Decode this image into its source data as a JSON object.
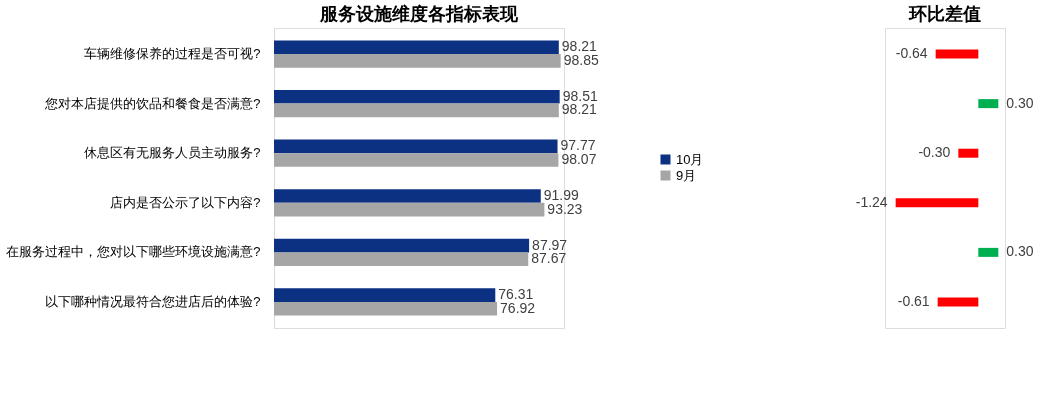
{
  "chart_data": [
    {
      "type": "bar",
      "orientation": "horizontal",
      "title": "服务设施维度各指标表现",
      "categories": [
        "车辆维修保养的过程是否可视?",
        "您对本店提供的饮品和餐食是否满意?",
        "休息区有无服务人员主动服务?",
        "店内是否公示了以下内容?",
        "在服务过程中，您对以下哪些环境设施满意?",
        "以下哪种情况最符合您进店后的体验?"
      ],
      "series": [
        {
          "name": "10月",
          "color": "#0c3183",
          "values": [
            98.21,
            98.51,
            97.77,
            91.99,
            87.97,
            76.31
          ]
        },
        {
          "name": "9月",
          "color": "#a6a6a6",
          "values": [
            98.85,
            98.21,
            98.07,
            93.23,
            87.67,
            76.92
          ]
        }
      ],
      "data_labels": true,
      "legend": "right",
      "grid": false,
      "tick_labels": "y"
    },
    {
      "type": "bar",
      "orientation": "horizontal",
      "title": "环比差值",
      "categories": [
        null,
        null,
        null,
        null,
        null,
        null
      ],
      "values": [
        -0.64,
        0.3,
        -0.3,
        -1.24,
        0.3,
        -0.61
      ],
      "value_labels": [
        "-0.64",
        "0.30",
        "-0.30",
        "-1.24",
        "0.30",
        "-0.61"
      ],
      "colors": [
        "#ff0000",
        "#00b050",
        "#ff0000",
        "#ff0000",
        "#00b050",
        "#ff0000"
      ],
      "grid": false,
      "tick_labels": false
    }
  ]
}
